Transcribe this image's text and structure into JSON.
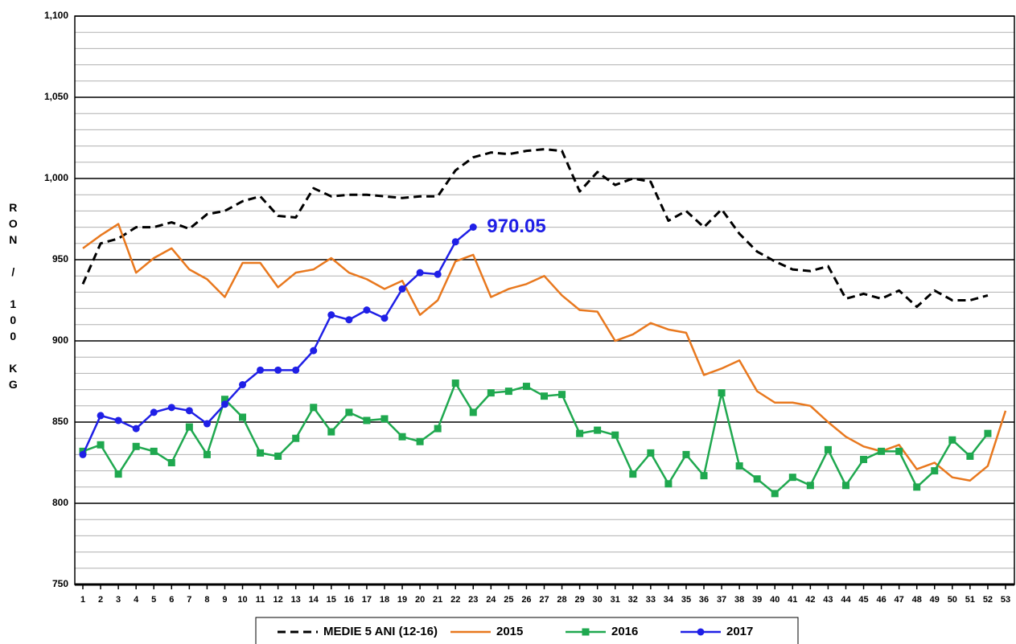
{
  "chart_data": {
    "type": "line",
    "y_label": "RON / 100 KG",
    "categories": [
      1,
      2,
      3,
      4,
      5,
      6,
      7,
      8,
      9,
      10,
      11,
      12,
      13,
      14,
      15,
      16,
      17,
      18,
      19,
      20,
      21,
      22,
      23,
      24,
      25,
      26,
      27,
      28,
      29,
      30,
      31,
      32,
      33,
      34,
      35,
      36,
      37,
      38,
      39,
      40,
      41,
      42,
      43,
      44,
      45,
      46,
      47,
      48,
      49,
      50,
      51,
      52,
      53
    ],
    "ylim": [
      750,
      1100
    ],
    "yticks": [
      750,
      800,
      850,
      900,
      950,
      {
        "value": 1000,
        "label": "1,000"
      },
      {
        "value": 1050,
        "label": "1,050"
      },
      {
        "value": 1100,
        "label": "1,100"
      }
    ],
    "minor_grid_step": 10,
    "grid": true,
    "series": [
      {
        "name": "MEDIE 5 ANI (12-16)",
        "color": "#000000",
        "dashed": true,
        "marker": null,
        "values": [
          935,
          960,
          963,
          970,
          970,
          973,
          969,
          978,
          980,
          986,
          989,
          977,
          976,
          994,
          989,
          990,
          990,
          989,
          988,
          989,
          989,
          1005,
          1013,
          1016,
          1015,
          1017,
          1018,
          1017,
          992,
          1004,
          996,
          1000,
          998,
          974,
          980,
          970,
          981,
          966,
          955,
          949,
          944,
          943,
          946,
          926,
          929,
          926,
          931,
          921,
          931,
          925,
          925,
          928,
          null
        ]
      },
      {
        "name": "2015",
        "color": "#e8781e",
        "dashed": false,
        "marker": null,
        "values": [
          957,
          965,
          972,
          942,
          951,
          957,
          944,
          938,
          927,
          948,
          948,
          933,
          942,
          944,
          951,
          942,
          938,
          932,
          937,
          916,
          925,
          949,
          953,
          927,
          932,
          935,
          940,
          928,
          919,
          918,
          900,
          904,
          911,
          907,
          905,
          879,
          883,
          888,
          869,
          862,
          862,
          860,
          850,
          841,
          835,
          832,
          836,
          821,
          825,
          816,
          814,
          823,
          857
        ]
      },
      {
        "name": "2016",
        "color": "#1fa84f",
        "dashed": false,
        "marker": "square",
        "values": [
          832,
          836,
          818,
          835,
          832,
          825,
          847,
          830,
          864,
          853,
          831,
          829,
          840,
          859,
          844,
          856,
          851,
          852,
          841,
          838,
          846,
          874,
          856,
          868,
          869,
          872,
          866,
          867,
          843,
          845,
          842,
          818,
          831,
          812,
          830,
          817,
          868,
          823,
          815,
          806,
          816,
          811,
          833,
          811,
          827,
          832,
          832,
          810,
          820,
          839,
          829,
          843,
          null
        ]
      },
      {
        "name": "2017",
        "color": "#1f1fe6",
        "dashed": false,
        "marker": "circle",
        "values": [
          830,
          854,
          851,
          846,
          856,
          859,
          857,
          849,
          861,
          873,
          882,
          882,
          882,
          894,
          916,
          913,
          919,
          914,
          932,
          942,
          941,
          961,
          970.05,
          null,
          null,
          null,
          null,
          null,
          null,
          null,
          null,
          null,
          null,
          null,
          null,
          null,
          null,
          null,
          null,
          null,
          null,
          null,
          null,
          null,
          null,
          null,
          null,
          null,
          null,
          null,
          null,
          null,
          null
        ],
        "value_labels": [
          null,
          null,
          null,
          null,
          null,
          null,
          null,
          null,
          null,
          null,
          null,
          null,
          null,
          null,
          null,
          null,
          null,
          null,
          null,
          null,
          null,
          null,
          "970.05",
          null,
          null,
          null,
          null,
          null,
          null,
          null,
          null,
          null,
          null,
          null,
          null,
          null,
          null,
          null,
          null,
          null,
          null,
          null,
          null,
          null,
          null,
          null,
          null,
          null,
          null,
          null,
          null,
          null,
          null
        ]
      }
    ]
  }
}
